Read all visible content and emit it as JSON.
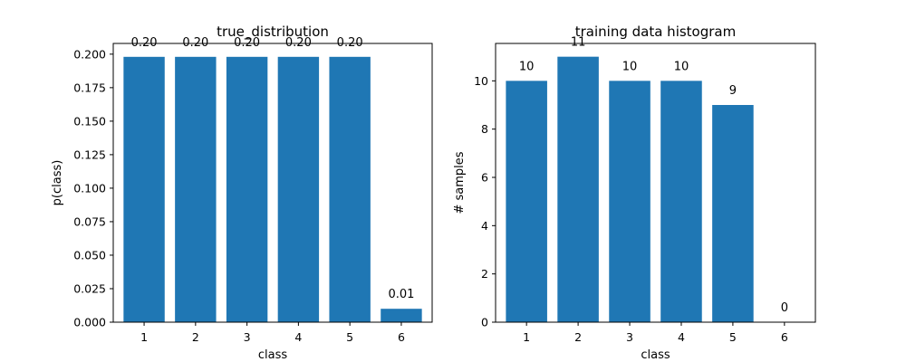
{
  "chart_data": [
    {
      "type": "bar",
      "title": "true_distribution",
      "xlabel": "class",
      "ylabel": "p(class)",
      "categories": [
        "1",
        "2",
        "3",
        "4",
        "5",
        "6"
      ],
      "values": [
        0.198,
        0.198,
        0.198,
        0.198,
        0.198,
        0.01
      ],
      "data_labels": [
        "0.20",
        "0.20",
        "0.20",
        "0.20",
        "0.20",
        "0.01"
      ],
      "yticks": [
        "0.000",
        "0.025",
        "0.050",
        "0.075",
        "0.100",
        "0.125",
        "0.150",
        "0.175",
        "0.200"
      ],
      "ylim": [
        0,
        0.208
      ],
      "bar_color": "#1f77b4",
      "grid": false
    },
    {
      "type": "bar",
      "title": "training data histogram",
      "xlabel": "class",
      "ylabel": "# samples",
      "categories": [
        "1",
        "2",
        "3",
        "4",
        "5",
        "6"
      ],
      "values": [
        10,
        11,
        10,
        10,
        9,
        0
      ],
      "data_labels": [
        "10",
        "11",
        "10",
        "10",
        "9",
        "0"
      ],
      "yticks": [
        "0",
        "2",
        "4",
        "6",
        "8",
        "10"
      ],
      "ylim": [
        0,
        11.55
      ],
      "bar_color": "#1f77b4",
      "grid": false
    }
  ]
}
